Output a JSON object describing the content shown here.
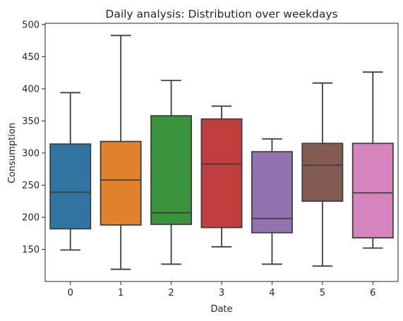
{
  "chart_data": {
    "type": "box",
    "title": "Daily analysis: Distribution over weekdays",
    "xlabel": "Date",
    "ylabel": "Consumption",
    "ylim": [
      100,
      502
    ],
    "yticks": [
      150,
      200,
      250,
      300,
      350,
      400,
      450,
      500
    ],
    "grid": false,
    "categories": [
      "0",
      "1",
      "2",
      "3",
      "4",
      "5",
      "6"
    ],
    "boxes": [
      {
        "category": "0",
        "color": "#3274a1",
        "whisker_low": 149,
        "q1": 182,
        "median": 239,
        "q3": 314,
        "whisker_high": 394
      },
      {
        "category": "1",
        "color": "#e1812c",
        "whisker_low": 119,
        "q1": 188,
        "median": 258,
        "q3": 318,
        "whisker_high": 483
      },
      {
        "category": "2",
        "color": "#3a923a",
        "whisker_low": 127,
        "q1": 189,
        "median": 207,
        "q3": 358,
        "whisker_high": 413
      },
      {
        "category": "3",
        "color": "#c03d3e",
        "whisker_low": 154,
        "q1": 184,
        "median": 283,
        "q3": 353,
        "whisker_high": 373
      },
      {
        "category": "4",
        "color": "#9372b2",
        "whisker_low": 127,
        "q1": 176,
        "median": 198,
        "q3": 302,
        "whisker_high": 322
      },
      {
        "category": "5",
        "color": "#845b53",
        "whisker_low": 124,
        "q1": 225,
        "median": 281,
        "q3": 315,
        "whisker_high": 409
      },
      {
        "category": "6",
        "color": "#d684bd",
        "whisker_low": 152,
        "q1": 168,
        "median": 238,
        "q3": 315,
        "whisker_high": 426
      }
    ]
  }
}
